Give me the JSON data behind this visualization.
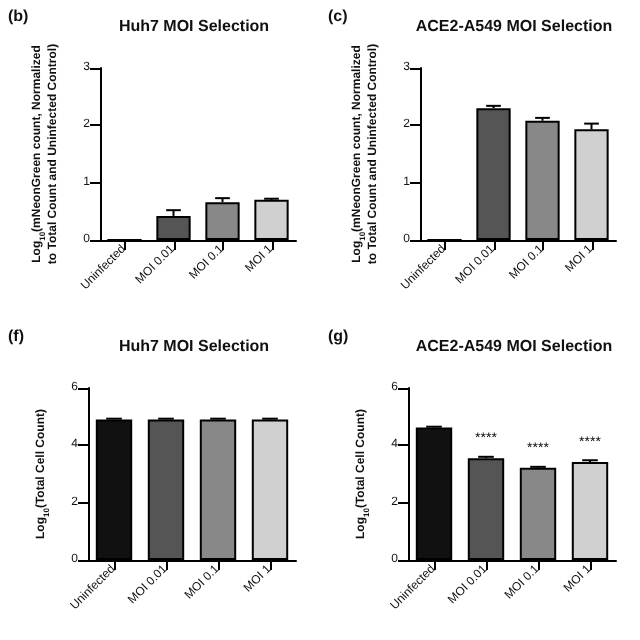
{
  "chart_data": [
    {
      "type": "bar",
      "title": "Huh7 MOI Selection",
      "ylabel": "Log$_{10}$(mNeonGreen count, Normalized to Total Count and Uninfected Control)",
      "annotations": [
        "(b)"
      ],
      "categories": [
        "Uninfected",
        "MOI 0.01",
        "MOI 0.1",
        "MOI 1"
      ],
      "values": [
        0,
        0.42,
        0.66,
        0.7
      ],
      "colors": [
        "#111111",
        "#555555",
        "#888888",
        "#d0d0d0"
      ],
      "errors": [
        null,
        0.1,
        0.07,
        0.02
      ],
      "ylim": [
        0,
        3
      ],
      "yticks": [
        0,
        1,
        2,
        3
      ],
      "grid": false
    },
    {
      "type": "bar",
      "title": "ACE2-A549 MOI Selection",
      "ylabel": "Log$_{10}$(mNeonGreen count, Normalized to Total Count and Uninfected Control)",
      "annotations": [
        "(c)"
      ],
      "categories": [
        "Uninfected",
        "MOI 0.01",
        "MOI 0.1",
        "MOI 1"
      ],
      "values": [
        0,
        2.3,
        2.08,
        1.93
      ],
      "colors": [
        "#111111",
        "#555555",
        "#888888",
        "#d0d0d0"
      ],
      "errors": [
        null,
        0.04,
        0.05,
        0.1
      ],
      "ylim": [
        0,
        3
      ],
      "yticks": [
        0,
        1,
        2,
        3
      ],
      "grid": false
    },
    {
      "type": "bar",
      "title": "Huh7 MOI Selection",
      "ylabel": "Log$_{10}$(Total Cell Count)",
      "annotations": [
        "(f)"
      ],
      "categories": [
        "Uninfected",
        "MOI 0.01",
        "MOI 0.1",
        "MOI 1"
      ],
      "values": [
        4.9,
        4.9,
        4.9,
        4.9
      ],
      "colors": [
        "#111111",
        "#555555",
        "#888888",
        "#d0d0d0"
      ],
      "errors": [
        0.03,
        0.03,
        0.03,
        0.03
      ],
      "ylim": [
        0,
        6
      ],
      "yticks": [
        0,
        2,
        4,
        6
      ],
      "grid": false
    },
    {
      "type": "bar",
      "title": "ACE2-A549 MOI Selection",
      "ylabel": "Log$_{10}$(Total Cell Count)",
      "annotations": [
        "(g)"
      ],
      "value_labels": [
        null,
        "****",
        "****",
        "****"
      ],
      "categories": [
        "Uninfected",
        "MOI 0.01",
        "MOI 0.1",
        "MOI 1"
      ],
      "values": [
        4.62,
        3.55,
        3.22,
        3.42
      ],
      "colors": [
        "#111111",
        "#555555",
        "#888888",
        "#d0d0d0"
      ],
      "errors": [
        0.03,
        0.05,
        0.03,
        0.06
      ],
      "ylim": [
        0,
        6
      ],
      "yticks": [
        0,
        2,
        4,
        6
      ],
      "grid": false
    }
  ]
}
